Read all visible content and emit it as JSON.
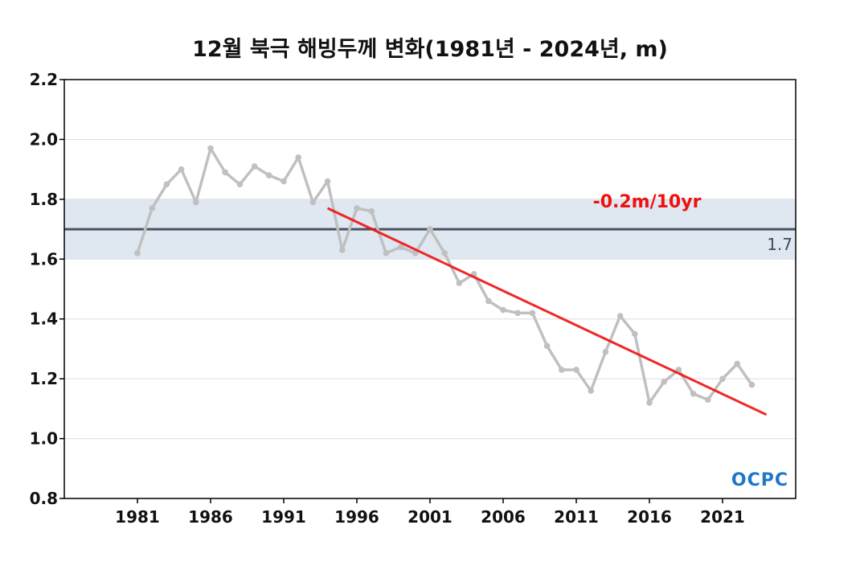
{
  "chart_data": {
    "type": "line",
    "title": "12월 북극 해빙두께 변화(1981년 - 2024년, m)",
    "xlabel": "",
    "ylabel": "",
    "xlim": [
      1976,
      2026
    ],
    "ylim": [
      0.8,
      2.2
    ],
    "yticks": [
      "0.8",
      "1.0",
      "1.2",
      "1.4",
      "1.6",
      "1.8",
      "2.0",
      "2.2"
    ],
    "xticks": [
      1981,
      1986,
      1991,
      1996,
      2001,
      2006,
      2011,
      2016,
      2021
    ],
    "grid": true,
    "x": [
      1981,
      1982,
      1983,
      1984,
      1985,
      1986,
      1987,
      1988,
      1989,
      1990,
      1991,
      1992,
      1993,
      1994,
      1995,
      1996,
      1997,
      1998,
      1999,
      2000,
      2001,
      2002,
      2003,
      2004,
      2005,
      2006,
      2007,
      2008,
      2009,
      2010,
      2011,
      2012,
      2013,
      2014,
      2015,
      2016,
      2017,
      2018,
      2019,
      2020,
      2021,
      2022,
      2023
    ],
    "series": [
      {
        "values": [
          1.62,
          1.77,
          1.85,
          1.9,
          1.79,
          1.97,
          1.89,
          1.85,
          1.91,
          1.88,
          1.86,
          1.94,
          1.79,
          1.86,
          1.63,
          1.77,
          1.76,
          1.62,
          1.64,
          1.62,
          1.7,
          1.62,
          1.52,
          1.55,
          1.46,
          1.43,
          1.42,
          1.42,
          1.31,
          1.23,
          1.23,
          1.16,
          1.29,
          1.41,
          1.35,
          1.12,
          1.19,
          1.23,
          1.15,
          1.13,
          1.2,
          1.25,
          1.18
        ],
        "color": "#c0c0c0"
      }
    ],
    "trend": {
      "x": [
        1994,
        2024
      ],
      "y": [
        1.77,
        1.08
      ],
      "label": "-0.2m/10yr",
      "color": "#ee1111"
    },
    "reference": {
      "value": 1.7,
      "label": "1.7",
      "band": [
        1.6,
        1.8
      ],
      "line_color": "#4a5260",
      "band_color": "#dfe7f1"
    }
  },
  "logo": {
    "text": "OCPC"
  }
}
